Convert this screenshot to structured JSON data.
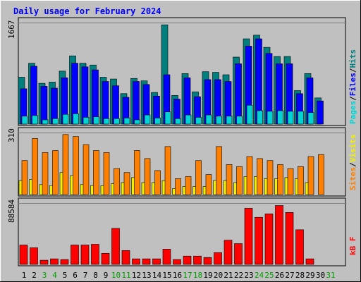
{
  "title": "Daily usage for February 2024",
  "colors": {
    "background": "#c0c0c0",
    "title": "#0000ff",
    "hits": "#007f7f",
    "files": "#0000ff",
    "pages": "#00d3d3",
    "visits": "#f0f000",
    "sites": "#ff8000",
    "kbytes": "#ff0000",
    "weekend_label": "#00a000",
    "weekday_label": "#000000"
  },
  "legend_top": [
    "Pages",
    "/",
    "Files",
    "/",
    "Hits"
  ],
  "legend_mid": [
    "Sites",
    "/",
    "Visits"
  ],
  "legend_bot": [
    "kB F"
  ],
  "chart_data": {
    "type": "bar",
    "categories": [
      "1",
      "2",
      "3",
      "4",
      "5",
      "6",
      "7",
      "8",
      "9",
      "10",
      "11",
      "12",
      "13",
      "14",
      "15",
      "16",
      "17",
      "18",
      "19",
      "20",
      "21",
      "22",
      "23",
      "24",
      "25",
      "26",
      "27",
      "28",
      "29",
      "30",
      "31"
    ],
    "weekend_days": [
      3,
      4,
      10,
      11,
      17,
      18,
      24,
      25,
      31
    ],
    "panels": [
      {
        "name": "hits-files-pages",
        "ymax_label": "1667",
        "ylim": [
          0,
          1667
        ],
        "series": [
          {
            "name": "Hits",
            "values": [
              770,
              1000,
              670,
              690,
              870,
              1120,
              1000,
              970,
              770,
              740,
              500,
              750,
              710,
              520,
              1630,
              470,
              830,
              530,
              860,
              850,
              810,
              1100,
              1400,
              1460,
              1260,
              1110,
              1110,
              550,
              830,
              430,
              0
            ]
          },
          {
            "name": "Files",
            "values": [
              580,
              950,
              620,
              590,
              760,
              1000,
              940,
              890,
              700,
              630,
              440,
              700,
              650,
              460,
              810,
              410,
              760,
              450,
              730,
              730,
              700,
              990,
              1280,
              1400,
              1160,
              990,
              990,
              500,
              760,
              380,
              0
            ]
          },
          {
            "name": "Pages",
            "values": [
              130,
              140,
              70,
              90,
              160,
              170,
              110,
              120,
              90,
              90,
              100,
              70,
              150,
              100,
              200,
              90,
              150,
              110,
              150,
              130,
              130,
              130,
              310,
              220,
              210,
              220,
              210,
              210,
              190,
              0,
              0
            ]
          }
        ]
      },
      {
        "name": "sites-visits",
        "ymax_label": "310",
        "ylim": [
          0,
          310
        ],
        "series": [
          {
            "name": "Sites",
            "values": [
              170,
              280,
              210,
              220,
              300,
              290,
              250,
              220,
              210,
              130,
              110,
              220,
              180,
              120,
              240,
              80,
              90,
              170,
              100,
              240,
              150,
              140,
              190,
              180,
              170,
              150,
              130,
              140,
              190,
              200,
              0
            ]
          },
          {
            "name": "Visits",
            "values": [
              70,
              75,
              50,
              45,
              110,
              95,
              50,
              45,
              45,
              55,
              60,
              85,
              60,
              60,
              70,
              30,
              40,
              40,
              40,
              70,
              70,
              60,
              90,
              90,
              80,
              80,
              85,
              80,
              60,
              0,
              0
            ]
          }
        ]
      },
      {
        "name": "kbytes",
        "ymax_label": "88584",
        "ylim": [
          0,
          88584
        ],
        "series": [
          {
            "name": "kB F",
            "values": [
              28000,
              24000,
              6000,
              8000,
              7000,
              28000,
              28000,
              29000,
              16000,
              52000,
              20000,
              8000,
              8000,
              8000,
              22000,
              7000,
              12000,
              12000,
              10000,
              17000,
              35000,
              30000,
              81000,
              68000,
              73000,
              85000,
              75000,
              50000,
              8000,
              0,
              0
            ]
          }
        ]
      }
    ]
  }
}
